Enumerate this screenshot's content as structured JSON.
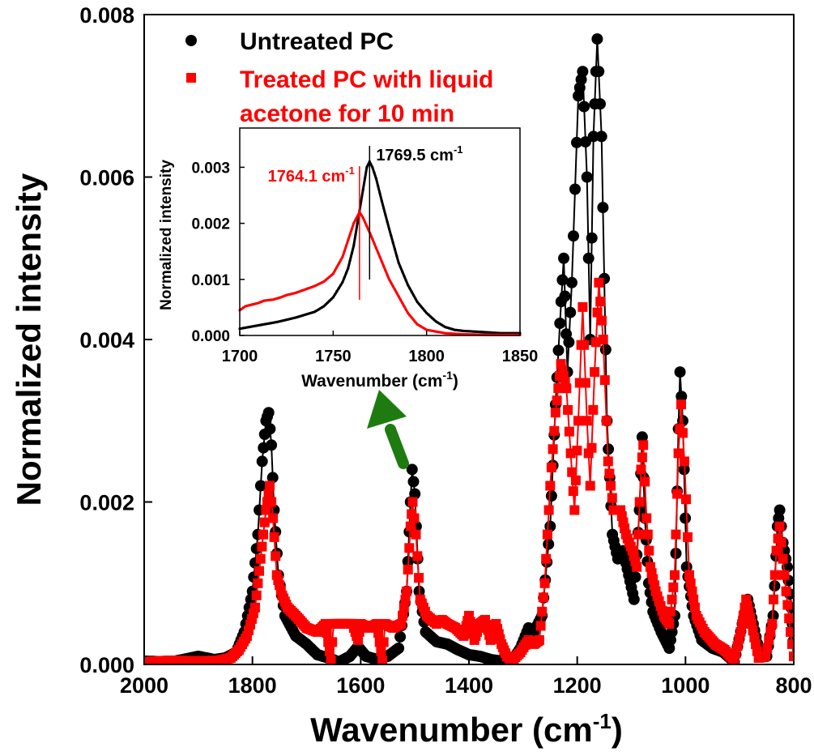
{
  "chart_data": [
    {
      "type": "line",
      "x_axis": {
        "label": "Wavenumber (cm",
        "label_sup": "-1",
        "label_end": ")",
        "range": [
          2000,
          800
        ],
        "reversed": true,
        "ticks": [
          2000,
          1800,
          1600,
          1400,
          1200,
          1000,
          800
        ]
      },
      "y_axis": {
        "label": "Normalized intensity",
        "range": [
          0,
          0.008
        ],
        "ticks": [
          "0.000",
          "0.002",
          "0.004",
          "0.006",
          "0.008"
        ]
      },
      "grid": false,
      "legend": {
        "placement": "top-left"
      },
      "series": [
        {
          "name": "Untreated PC",
          "color": "#000000",
          "marker": "circle",
          "points": [
            [
              2000,
              4e-05
            ],
            [
              1950,
              3e-05
            ],
            [
              1900,
              0.0001
            ],
            [
              1870,
              6e-05
            ],
            [
              1850,
              8e-05
            ],
            [
              1830,
              0.00015
            ],
            [
              1815,
              0.0004
            ],
            [
              1800,
              0.0009
            ],
            [
              1790,
              0.0016
            ],
            [
              1782,
              0.0025
            ],
            [
              1775,
              0.003
            ],
            [
              1770,
              0.0031
            ],
            [
              1765,
              0.0027
            ],
            [
              1760,
              0.0019
            ],
            [
              1752,
              0.0011
            ],
            [
              1740,
              0.0006
            ],
            [
              1720,
              0.00035
            ],
            [
              1700,
              0.00025
            ],
            [
              1680,
              0.00012
            ],
            [
              1660,
              8e-05
            ],
            [
              1640,
              3e-05
            ],
            [
              1620,
              0.0001
            ],
            [
              1605,
              0.00022
            ],
            [
              1590,
              0.0001
            ],
            [
              1570,
              6e-05
            ],
            [
              1550,
              0.0001
            ],
            [
              1530,
              0.0002
            ],
            [
              1515,
              0.0009
            ],
            [
              1508,
              0.002
            ],
            [
              1505,
              0.0024
            ],
            [
              1500,
              0.0021
            ],
            [
              1492,
              0.0009
            ],
            [
              1480,
              0.0004
            ],
            [
              1460,
              0.00028
            ],
            [
              1440,
              0.00025
            ],
            [
              1420,
              0.00018
            ],
            [
              1400,
              0.00012
            ],
            [
              1380,
              0.0001
            ],
            [
              1360,
              6e-05
            ],
            [
              1340,
              4e-05
            ],
            [
              1320,
              5e-05
            ],
            [
              1305,
              0.0002
            ],
            [
              1290,
              0.00045
            ],
            [
              1280,
              0.0004
            ],
            [
              1265,
              0.0006
            ],
            [
              1250,
              0.0017
            ],
            [
              1240,
              0.0032
            ],
            [
              1232,
              0.0042
            ],
            [
              1225,
              0.005
            ],
            [
              1218,
              0.0036
            ],
            [
              1210,
              0.0047
            ],
            [
              1198,
              0.007
            ],
            [
              1190,
              0.0073
            ],
            [
              1182,
              0.006
            ],
            [
              1176,
              0.004
            ],
            [
              1170,
              0.0065
            ],
            [
              1163,
              0.0077
            ],
            [
              1155,
              0.0065
            ],
            [
              1145,
              0.003
            ],
            [
              1135,
              0.0016
            ],
            [
              1125,
              0.0013
            ],
            [
              1115,
              0.0014
            ],
            [
              1105,
              0.0011
            ],
            [
              1095,
              0.0008
            ],
            [
              1085,
              0.0019
            ],
            [
              1080,
              0.0028
            ],
            [
              1075,
              0.0018
            ],
            [
              1068,
              0.001
            ],
            [
              1060,
              0.00065
            ],
            [
              1045,
              0.0004
            ],
            [
              1030,
              0.0002
            ],
            [
              1020,
              0.0006
            ],
            [
              1013,
              0.0029
            ],
            [
              1010,
              0.0036
            ],
            [
              1005,
              0.003
            ],
            [
              998,
              0.0012
            ],
            [
              985,
              0.0006
            ],
            [
              970,
              0.0003
            ],
            [
              950,
              0.0002
            ],
            [
              930,
              0.00015
            ],
            [
              910,
              3e-05
            ],
            [
              895,
              0.0005
            ],
            [
              885,
              0.0008
            ],
            [
              875,
              0.0005
            ],
            [
              862,
              0.0001
            ],
            [
              850,
              0.0001
            ],
            [
              838,
              0.0006
            ],
            [
              830,
              0.0017
            ],
            [
              826,
              0.0019
            ],
            [
              820,
              0.0015
            ],
            [
              812,
              0.0012
            ],
            [
              805,
              0.0007
            ],
            [
              800,
              0.0003
            ]
          ]
        },
        {
          "name": "Treated PC with liquid acetone for 10 min",
          "color": "#ff0000",
          "marker": "square",
          "points": [
            [
              2000,
              3e-05
            ],
            [
              1950,
              5e-05
            ],
            [
              1900,
              4e-05
            ],
            [
              1860,
              5e-05
            ],
            [
              1840,
              8e-05
            ],
            [
              1825,
              0.00018
            ],
            [
              1810,
              0.00035
            ],
            [
              1795,
              0.0007
            ],
            [
              1785,
              0.0013
            ],
            [
              1775,
              0.0019
            ],
            [
              1768,
              0.0022
            ],
            [
              1762,
              0.0018
            ],
            [
              1755,
              0.0011
            ],
            [
              1745,
              0.00085
            ],
            [
              1735,
              0.0007
            ],
            [
              1720,
              0.0006
            ],
            [
              1700,
              0.00045
            ],
            [
              1680,
              0.0004
            ],
            [
              1665,
              0.0005
            ],
            [
              1655,
              5e-05
            ],
            [
              1650,
              0.0005
            ],
            [
              1630,
              0.0005
            ],
            [
              1615,
              0.0005
            ],
            [
              1605,
              0.0003
            ],
            [
              1600,
              0.0005
            ],
            [
              1585,
              0.00045
            ],
            [
              1570,
              0.0005
            ],
            [
              1560,
              5e-05
            ],
            [
              1555,
              0.0005
            ],
            [
              1540,
              0.00045
            ],
            [
              1525,
              0.0005
            ],
            [
              1515,
              0.0009
            ],
            [
              1508,
              0.0017
            ],
            [
              1504,
              0.002
            ],
            [
              1498,
              0.0016
            ],
            [
              1490,
              0.0008
            ],
            [
              1478,
              0.0006
            ],
            [
              1460,
              0.0005
            ],
            [
              1450,
              0.00055
            ],
            [
              1440,
              0.0005
            ],
            [
              1425,
              0.00045
            ],
            [
              1410,
              0.00035
            ],
            [
              1400,
              0.0006
            ],
            [
              1390,
              0.0003
            ],
            [
              1380,
              0.0005
            ],
            [
              1370,
              0.00055
            ],
            [
              1360,
              0.0003
            ],
            [
              1350,
              0.0005
            ],
            [
              1340,
              0.00025
            ],
            [
              1330,
              0.0001
            ],
            [
              1320,
              5e-05
            ],
            [
              1305,
              0.00015
            ],
            [
              1290,
              0.0003
            ],
            [
              1280,
              0.00025
            ],
            [
              1270,
              0.0003
            ],
            [
              1260,
              0.001
            ],
            [
              1250,
              0.0022
            ],
            [
              1240,
              0.0031
            ],
            [
              1230,
              0.0037
            ],
            [
              1220,
              0.0034
            ],
            [
              1212,
              0.0026
            ],
            [
              1205,
              0.0019
            ],
            [
              1198,
              0.003
            ],
            [
              1190,
              0.0044
            ],
            [
              1182,
              0.003
            ],
            [
              1176,
              0.0022
            ],
            [
              1168,
              0.0036
            ],
            [
              1160,
              0.0047
            ],
            [
              1152,
              0.004
            ],
            [
              1143,
              0.0025
            ],
            [
              1133,
              0.0019
            ],
            [
              1120,
              0.0019
            ],
            [
              1110,
              0.0016
            ],
            [
              1098,
              0.0014
            ],
            [
              1090,
              0.0012
            ],
            [
              1082,
              0.0024
            ],
            [
              1078,
              0.0027
            ],
            [
              1072,
              0.0018
            ],
            [
              1065,
              0.0012
            ],
            [
              1055,
              0.0009
            ],
            [
              1040,
              0.0006
            ],
            [
              1030,
              0.0005
            ],
            [
              1020,
              0.0011
            ],
            [
              1013,
              0.0026
            ],
            [
              1008,
              0.0032
            ],
            [
              1002,
              0.0025
            ],
            [
              993,
              0.0011
            ],
            [
              980,
              0.0006
            ],
            [
              965,
              0.0004
            ],
            [
              945,
              0.00025
            ],
            [
              928,
              0.00018
            ],
            [
              910,
              5e-05
            ],
            [
              898,
              0.0004
            ],
            [
              888,
              0.0008
            ],
            [
              878,
              0.0005
            ],
            [
              865,
              8e-05
            ],
            [
              852,
              0.0001
            ],
            [
              840,
              0.0005
            ],
            [
              832,
              0.0014
            ],
            [
              826,
              0.0017
            ],
            [
              820,
              0.0013
            ],
            [
              814,
              0.0009
            ],
            [
              806,
              0.0004
            ],
            [
              800,
              0.0001
            ]
          ]
        }
      ]
    },
    {
      "type": "line",
      "x_axis": {
        "label": "Wavenumber (cm",
        "label_sup": "-1",
        "label_end": ")",
        "range": [
          1700,
          1850
        ],
        "reversed": false,
        "ticks": [
          1700,
          1750,
          1800,
          1850
        ]
      },
      "y_axis": {
        "label": "Normalized intensity",
        "range": [
          0,
          0.0037
        ],
        "ticks": [
          "0.000",
          "0.001",
          "0.002",
          "0.003"
        ]
      },
      "grid": false,
      "annotations": [
        {
          "text": "1769.5 cm",
          "sup": "-1",
          "x": 1769.5,
          "color": "#000000"
        },
        {
          "text": "1764.1 cm",
          "sup": "-1",
          "x": 1764.1,
          "color": "#ff0000"
        }
      ],
      "series": [
        {
          "name": "Untreated PC",
          "color": "#000000",
          "points": [
            [
              1700,
              0.00012
            ],
            [
              1710,
              0.00018
            ],
            [
              1720,
              0.00024
            ],
            [
              1730,
              0.00032
            ],
            [
              1740,
              0.00042
            ],
            [
              1745,
              0.00052
            ],
            [
              1750,
              0.00068
            ],
            [
              1755,
              0.00095
            ],
            [
              1758,
              0.0012
            ],
            [
              1761,
              0.0016
            ],
            [
              1764,
              0.0022
            ],
            [
              1766,
              0.0026
            ],
            [
              1768,
              0.003
            ],
            [
              1769.5,
              0.0031
            ],
            [
              1771,
              0.003
            ],
            [
              1773,
              0.0028
            ],
            [
              1776,
              0.0024
            ],
            [
              1780,
              0.0019
            ],
            [
              1785,
              0.0013
            ],
            [
              1790,
              0.0009
            ],
            [
              1795,
              0.0006
            ],
            [
              1800,
              0.0004
            ],
            [
              1805,
              0.00025
            ],
            [
              1810,
              0.00015
            ],
            [
              1815,
              0.0001
            ],
            [
              1820,
              8e-05
            ],
            [
              1830,
              6e-05
            ],
            [
              1840,
              4e-05
            ],
            [
              1850,
              4e-05
            ]
          ]
        },
        {
          "name": "Treated PC with liquid acetone for 10 min",
          "color": "#ff0000",
          "points": [
            [
              1700,
              0.00045
            ],
            [
              1703,
              0.00052
            ],
            [
              1710,
              0.00058
            ],
            [
              1713,
              0.00062
            ],
            [
              1718,
              0.00064
            ],
            [
              1722,
              0.00068
            ],
            [
              1725,
              0.00072
            ],
            [
              1730,
              0.00076
            ],
            [
              1735,
              0.00082
            ],
            [
              1740,
              0.00088
            ],
            [
              1745,
              0.00096
            ],
            [
              1750,
              0.0011
            ],
            [
              1755,
              0.0014
            ],
            [
              1758,
              0.0017
            ],
            [
              1761,
              0.002
            ],
            [
              1764.1,
              0.0022
            ],
            [
              1766,
              0.0021
            ],
            [
              1770,
              0.0018
            ],
            [
              1775,
              0.0014
            ],
            [
              1780,
              0.001
            ],
            [
              1785,
              0.0007
            ],
            [
              1790,
              0.0004
            ],
            [
              1795,
              0.0002
            ],
            [
              1800,
              0.0001
            ],
            [
              1810,
              4e-05
            ],
            [
              1820,
              2e-05
            ],
            [
              1835,
              1e-05
            ],
            [
              1850,
              1e-05
            ]
          ]
        }
      ]
    }
  ]
}
